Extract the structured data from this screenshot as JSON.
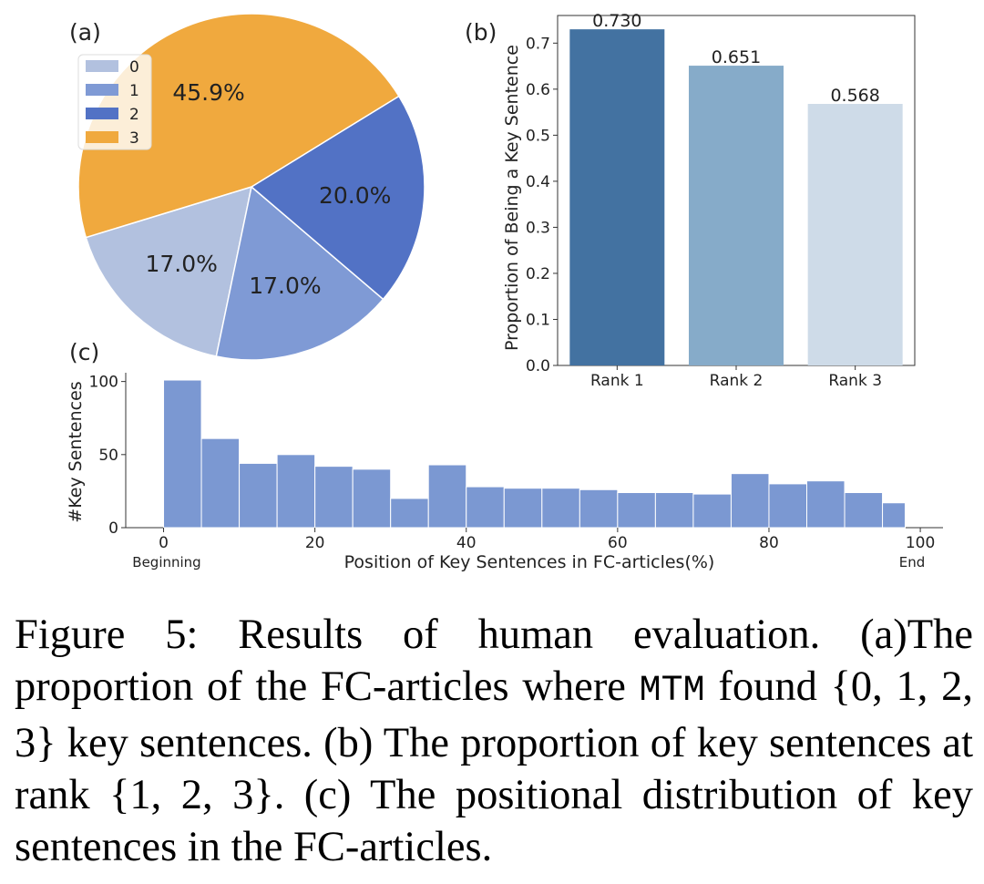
{
  "chart_data": [
    {
      "type": "pie",
      "panel_label": "(a)",
      "labels": [
        "0",
        "1",
        "2",
        "3"
      ],
      "values": [
        17.0,
        17.0,
        20.0,
        45.9
      ],
      "value_labels": [
        "17.0%",
        "17.0%",
        "20.0%",
        "45.9%"
      ],
      "colors": [
        "#b2c1df",
        "#7f9ad5",
        "#5272c5",
        "#f0a93e"
      ],
      "legend": "top-left"
    },
    {
      "type": "bar",
      "panel_label": "(b)",
      "categories": [
        "Rank 1",
        "Rank 2",
        "Rank 3"
      ],
      "values": [
        0.73,
        0.651,
        0.568
      ],
      "value_labels": [
        "0.730",
        "0.651",
        "0.568"
      ],
      "colors": [
        "#4372a1",
        "#86abc9",
        "#cedbe8"
      ],
      "ylabel": "Proportion of Being a Key Sentence",
      "ylim": [
        0,
        0.76
      ],
      "yticks": [
        "0.0",
        "0.1",
        "0.2",
        "0.3",
        "0.4",
        "0.5",
        "0.6",
        "0.7"
      ]
    },
    {
      "type": "bar",
      "subtype": "histogram",
      "panel_label": "(c)",
      "bin_edges": [
        0,
        5,
        10,
        15,
        20,
        25,
        30,
        35,
        40,
        45,
        50,
        55,
        60,
        65,
        70,
        75,
        80,
        85,
        90,
        95,
        98
      ],
      "values": [
        101,
        61,
        44,
        50,
        42,
        40,
        20,
        43,
        28,
        27,
        27,
        26,
        24,
        24,
        23,
        37,
        30,
        32,
        24,
        17
      ],
      "color": "#7b98d2",
      "xlabel": "Position of Key Sentences in FC-articles(%)",
      "ylabel": "#Key Sentences",
      "xlim": [
        -5,
        103
      ],
      "ylim": [
        0,
        106
      ],
      "xticks": [
        "0",
        "20",
        "40",
        "60",
        "80",
        "100"
      ],
      "yticks": [
        "0",
        "50",
        "100"
      ],
      "x_end_labels": [
        "Beginning",
        "End"
      ]
    }
  ],
  "caption": {
    "part1": "Figure 5: Results of human evaluation. (a)The proportion of the FC-articles where ",
    "mono": "MTM",
    "part2": " found {0, 1, 2, 3} key sentences. (b) The proportion of key sentences at rank {1, 2, 3}. (c) The positional distribution of key sentences in the FC-articles."
  }
}
